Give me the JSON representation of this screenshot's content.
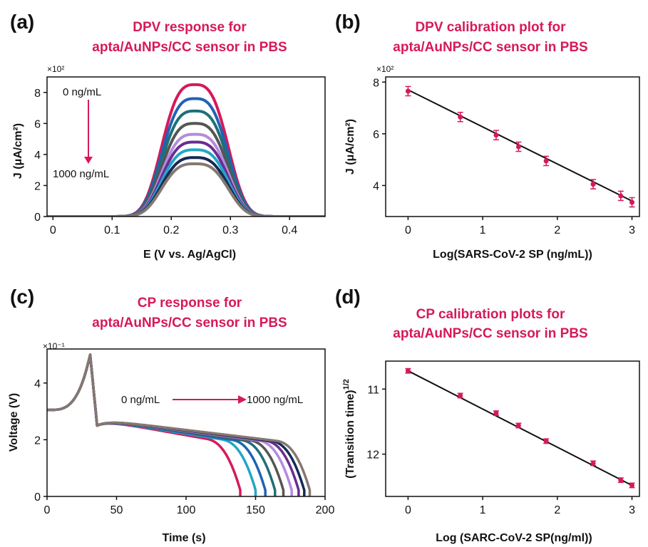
{
  "accent_color": "#d6195a",
  "chart_data": [
    {
      "panel": "(a)",
      "type": "line",
      "title": [
        "DPV response for",
        "apta/AuNPs/CC sensor in PBS"
      ],
      "xlabel": "E (V vs. Ag/AgCl)",
      "ylabel": "J (μA/cm²)",
      "y_multiplier": "×10²",
      "xlim": [
        -0.01,
        0.46
      ],
      "ylim": [
        0,
        9
      ],
      "xticks": [
        0,
        0.1,
        0.2,
        0.3,
        0.4
      ],
      "xtick_labels": [
        "0",
        "0.1",
        "0.2",
        "0.3",
        "0.4"
      ],
      "yticks": [
        0,
        2,
        4,
        6,
        8
      ],
      "peak_center_V": 0.24,
      "series": [
        {
          "peak": 8.5,
          "color": "#d6195a"
        },
        {
          "peak": 7.6,
          "color": "#1f63b4"
        },
        {
          "peak": 6.8,
          "color": "#1f6f78"
        },
        {
          "peak": 6.0,
          "color": "#555555"
        },
        {
          "peak": 5.3,
          "color": "#b48be0"
        },
        {
          "peak": 4.8,
          "color": "#6a2c91"
        },
        {
          "peak": 4.3,
          "color": "#23a6c7"
        },
        {
          "peak": 3.8,
          "color": "#152a55"
        },
        {
          "peak": 3.4,
          "color": "#847870"
        }
      ],
      "annotations": {
        "top": "0 ng/mL",
        "bottom": "1000 ng/mL"
      }
    },
    {
      "panel": "(b)",
      "type": "scatter",
      "title": [
        "DPV calibration plot for",
        "apta/AuNPs/CC sensor in PBS"
      ],
      "xlabel": "Log(SARS-CoV-2 SP (ng/mL))",
      "ylabel": "J (μA/cm²)",
      "y_multiplier": "×10²",
      "xlim": [
        -0.3,
        3.1
      ],
      "ylim": [
        2.8,
        8.2
      ],
      "xticks": [
        0,
        1,
        2,
        3
      ],
      "yticks": [
        4,
        6,
        8
      ],
      "x": [
        0,
        0.7,
        1.18,
        1.48,
        1.85,
        2.48,
        2.85,
        3.0
      ],
      "y": [
        7.65,
        6.65,
        5.95,
        5.5,
        4.95,
        4.05,
        3.6,
        3.35
      ],
      "error": [
        0.18,
        0.18,
        0.18,
        0.18,
        0.18,
        0.18,
        0.18,
        0.18
      ],
      "fit": {
        "x": [
          0,
          3.0
        ],
        "y": [
          7.7,
          3.4
        ]
      }
    },
    {
      "panel": "(c)",
      "type": "line",
      "title": [
        "CP response for",
        "apta/AuNPs/CC sensor in PBS"
      ],
      "xlabel": "Time (s)",
      "ylabel": "Voltage (V)",
      "y_multiplier": "×10⁻¹",
      "xlim": [
        0,
        200
      ],
      "ylim": [
        0,
        5.2
      ],
      "xticks": [
        0,
        50,
        100,
        150,
        200
      ],
      "yticks": [
        0,
        2,
        4
      ],
      "peak_time_s": 31,
      "peak_voltage": 5.0,
      "end_times": [
        139,
        150,
        157,
        164,
        170,
        176,
        181,
        185,
        189
      ],
      "colors": [
        "#d6195a",
        "#23a6c7",
        "#1f63b4",
        "#1f6f78",
        "#555555",
        "#b48be0",
        "#6a2c91",
        "#152a55",
        "#847870"
      ],
      "annotations": {
        "left": "0 ng/mL",
        "right": "1000 ng/mL"
      }
    },
    {
      "panel": "(d)",
      "type": "scatter",
      "title": [
        "CP calibration plots for",
        "apta/AuNPs/CC sensor in PBS"
      ],
      "xlabel": "Log (SARC-CoV-2 SP(ng/ml))",
      "ylabel": "(Transition time)",
      "ylabel_sup": "1/2",
      "xlim": [
        -0.3,
        3.1
      ],
      "ylim": [
        12.65,
        10.57
      ],
      "y_inverted": true,
      "xticks": [
        0,
        1,
        2,
        3
      ],
      "yticks": [
        11,
        12
      ],
      "x": [
        0,
        0.7,
        1.18,
        1.48,
        1.85,
        2.48,
        2.85,
        3.0
      ],
      "y": [
        10.72,
        11.1,
        11.37,
        11.56,
        11.8,
        12.14,
        12.4,
        12.48
      ],
      "error": [
        0.035,
        0.035,
        0.035,
        0.035,
        0.035,
        0.035,
        0.035,
        0.035
      ],
      "fit": {
        "x": [
          0,
          3.0
        ],
        "y": [
          10.72,
          12.48
        ]
      }
    }
  ]
}
